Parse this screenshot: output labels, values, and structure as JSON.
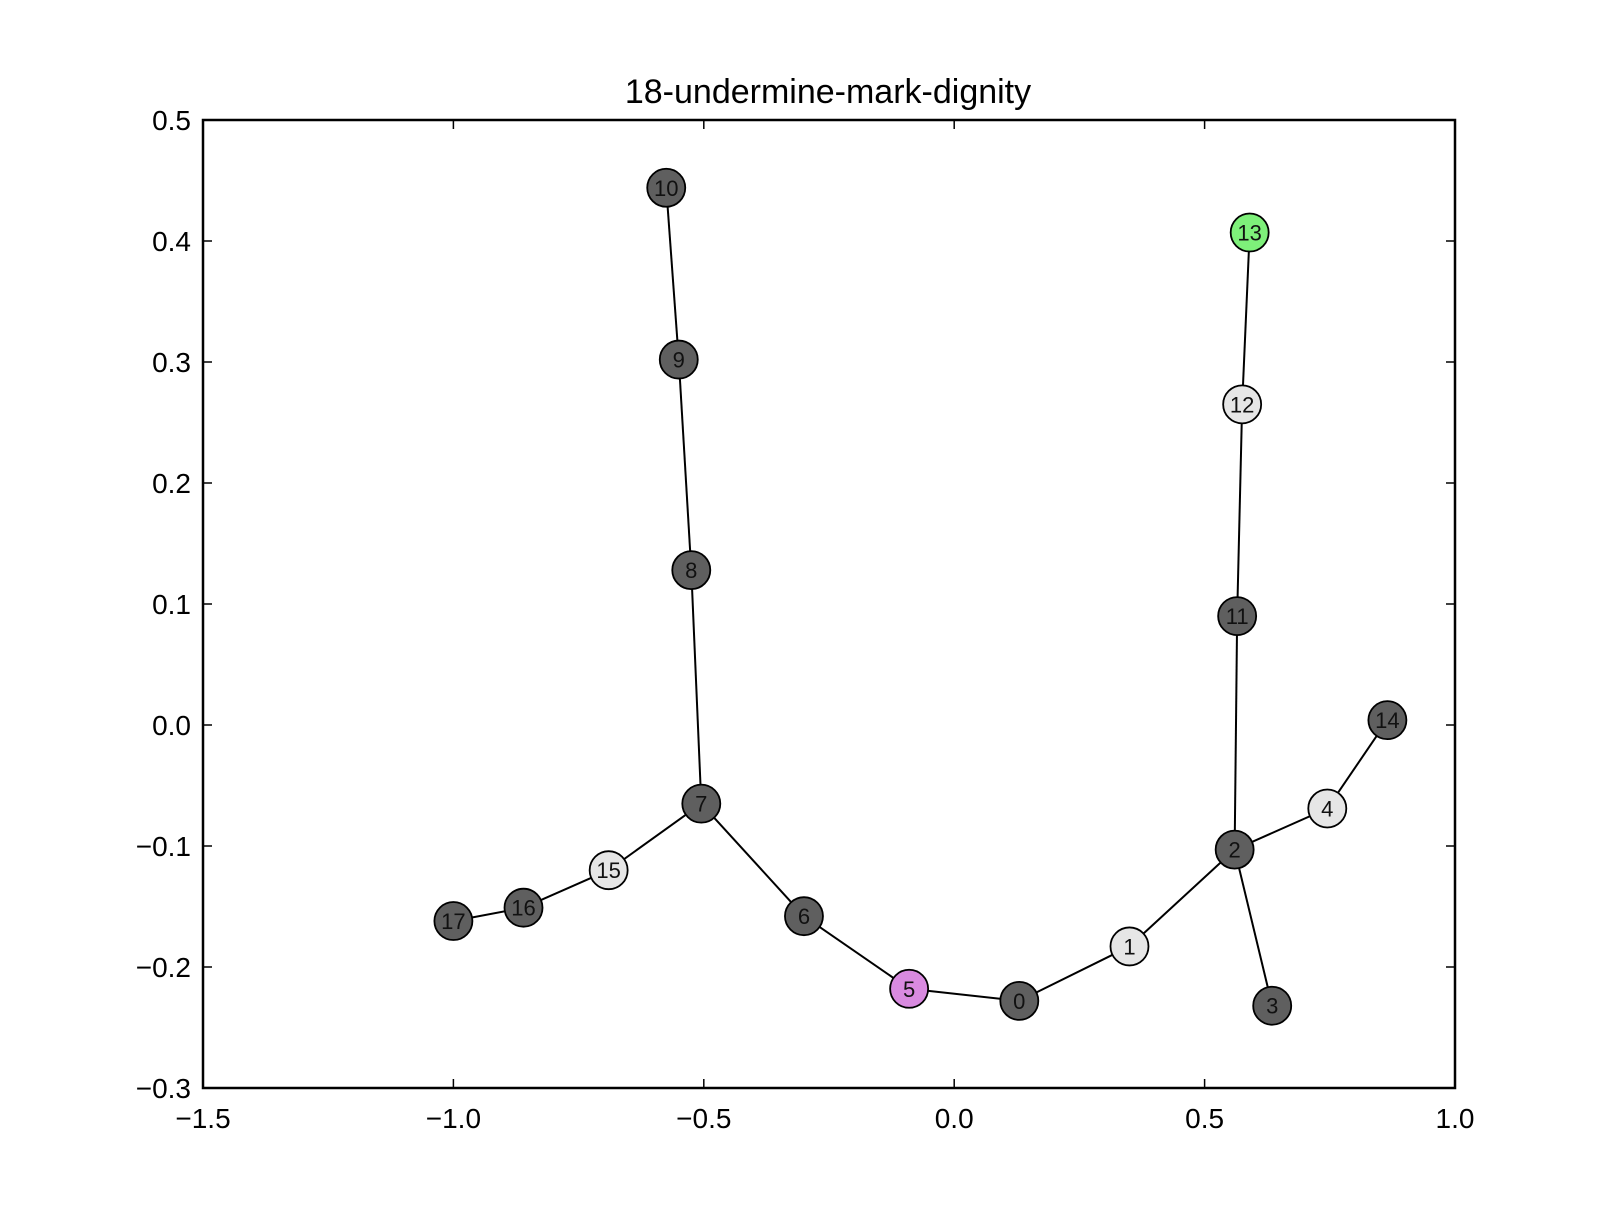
{
  "chart_data": {
    "type": "scatter",
    "title": "18-undermine-mark-dignity",
    "xlabel": "",
    "ylabel": "",
    "xlim": [
      -1.5,
      1.0
    ],
    "ylim": [
      -0.3,
      0.5
    ],
    "xticks": [
      -1.5,
      -1.0,
      -0.5,
      0.0,
      0.5,
      1.0
    ],
    "xtick_labels": [
      "−1.5",
      "−1.0",
      "−0.5",
      "0.0",
      "0.5",
      "1.0"
    ],
    "yticks": [
      -0.3,
      -0.2,
      -0.1,
      0.0,
      0.1,
      0.2,
      0.3,
      0.4,
      0.5
    ],
    "ytick_labels": [
      "−0.3",
      "−0.2",
      "−0.1",
      "0.0",
      "0.1",
      "0.2",
      "0.3",
      "0.4",
      "0.5"
    ],
    "grid": false,
    "nodes": [
      {
        "id": "0",
        "x": 0.13,
        "y": -0.228,
        "color": "#5f5f5f"
      },
      {
        "id": "1",
        "x": 0.35,
        "y": -0.183,
        "color": "#e6e6e6"
      },
      {
        "id": "2",
        "x": 0.56,
        "y": -0.103,
        "color": "#5f5f5f"
      },
      {
        "id": "3",
        "x": 0.635,
        "y": -0.232,
        "color": "#5f5f5f"
      },
      {
        "id": "4",
        "x": 0.745,
        "y": -0.069,
        "color": "#e6e6e6"
      },
      {
        "id": "5",
        "x": -0.09,
        "y": -0.218,
        "color": "#d98ae0"
      },
      {
        "id": "6",
        "x": -0.3,
        "y": -0.158,
        "color": "#5f5f5f"
      },
      {
        "id": "7",
        "x": -0.505,
        "y": -0.065,
        "color": "#5f5f5f"
      },
      {
        "id": "8",
        "x": -0.525,
        "y": 0.128,
        "color": "#5f5f5f"
      },
      {
        "id": "9",
        "x": -0.55,
        "y": 0.302,
        "color": "#5f5f5f"
      },
      {
        "id": "10",
        "x": -0.575,
        "y": 0.444,
        "color": "#5f5f5f"
      },
      {
        "id": "11",
        "x": 0.565,
        "y": 0.09,
        "color": "#5f5f5f"
      },
      {
        "id": "12",
        "x": 0.575,
        "y": 0.265,
        "color": "#e6e6e6"
      },
      {
        "id": "13",
        "x": 0.59,
        "y": 0.407,
        "color": "#7ef07a"
      },
      {
        "id": "14",
        "x": 0.865,
        "y": 0.004,
        "color": "#5f5f5f"
      },
      {
        "id": "15",
        "x": -0.69,
        "y": -0.12,
        "color": "#e6e6e6"
      },
      {
        "id": "16",
        "x": -0.86,
        "y": -0.151,
        "color": "#5f5f5f"
      },
      {
        "id": "17",
        "x": -1.0,
        "y": -0.162,
        "color": "#5f5f5f"
      }
    ],
    "edges": [
      [
        "10",
        "9"
      ],
      [
        "9",
        "8"
      ],
      [
        "8",
        "7"
      ],
      [
        "7",
        "15"
      ],
      [
        "15",
        "16"
      ],
      [
        "16",
        "17"
      ],
      [
        "7",
        "6"
      ],
      [
        "6",
        "5"
      ],
      [
        "5",
        "0"
      ],
      [
        "0",
        "1"
      ],
      [
        "1",
        "2"
      ],
      [
        "2",
        "3"
      ],
      [
        "2",
        "4"
      ],
      [
        "4",
        "14"
      ],
      [
        "2",
        "11"
      ],
      [
        "11",
        "12"
      ],
      [
        "12",
        "13"
      ]
    ]
  }
}
